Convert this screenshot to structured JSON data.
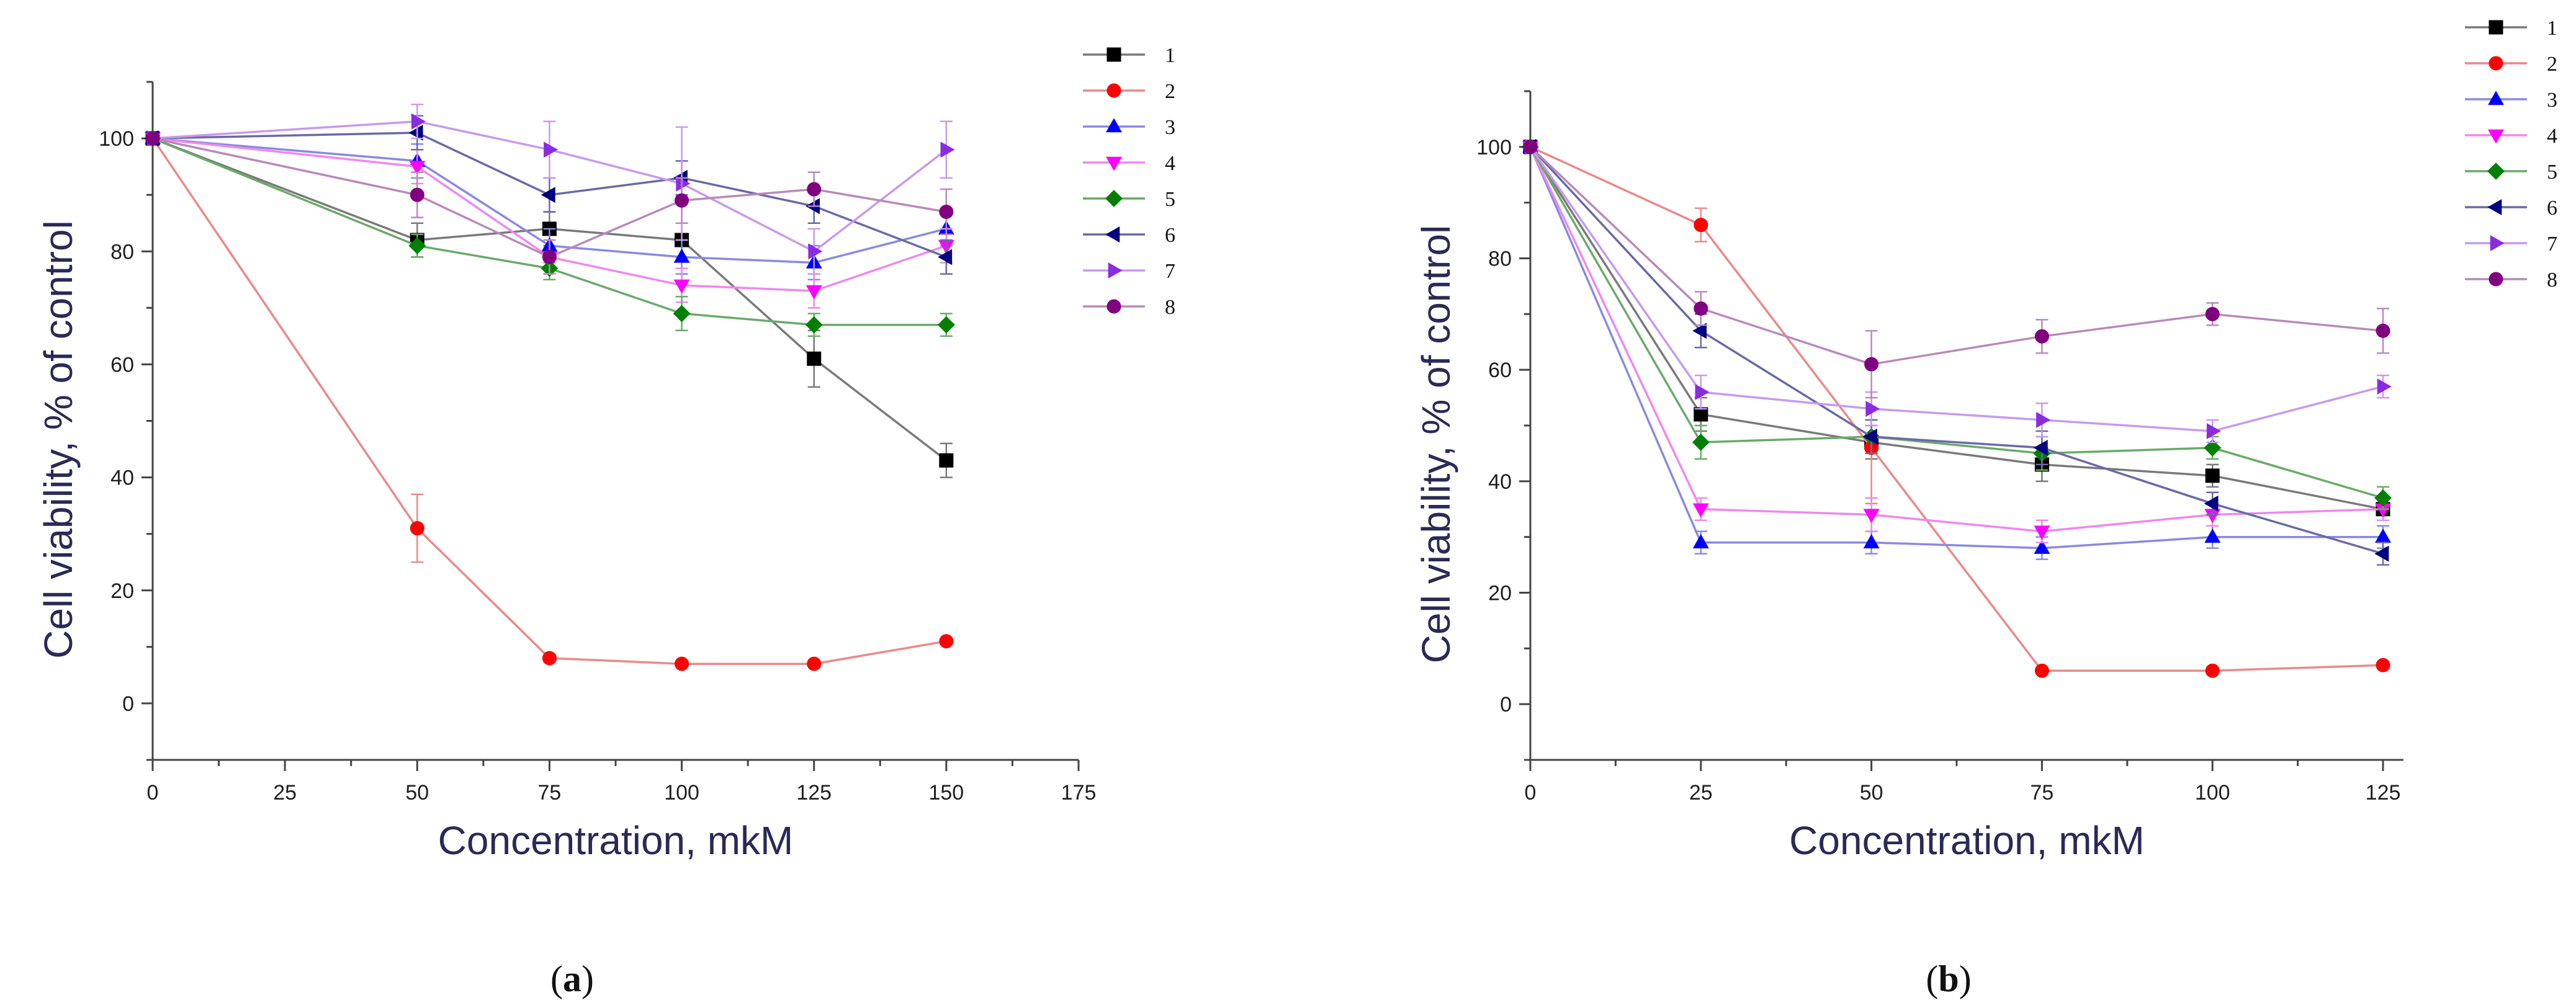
{
  "chart_data": [
    {
      "type": "line",
      "panel": "a",
      "caption": "a",
      "xlabel": "Concentration, mkM",
      "ylabel": "Cell viability, % of control",
      "xlim": [
        0,
        175
      ],
      "ylim": [
        -10,
        110
      ],
      "xticks": [
        0,
        25,
        50,
        75,
        100,
        125,
        150,
        175
      ],
      "yticks": [
        0,
        20,
        40,
        60,
        80,
        100
      ],
      "legend_position": "top-right",
      "x": [
        0,
        50,
        75,
        100,
        125,
        150
      ],
      "series": [
        {
          "name": "1",
          "color": "#000000",
          "marker": "square",
          "line_color": "#7a7a7a",
          "values": [
            100,
            82,
            84,
            82,
            61,
            43
          ],
          "errors": [
            0,
            3,
            3,
            3,
            5,
            3
          ]
        },
        {
          "name": "2",
          "color": "#ff0000",
          "marker": "circle",
          "line_color": "#e98a8a",
          "values": [
            100,
            31,
            8,
            7,
            7,
            11
          ],
          "errors": [
            0,
            6,
            0,
            0,
            0,
            0
          ]
        },
        {
          "name": "3",
          "color": "#0000ff",
          "marker": "triangle-up",
          "line_color": "#8a8ae0",
          "values": [
            100,
            96,
            81,
            79,
            78,
            84
          ],
          "errors": [
            0,
            3,
            3,
            3,
            3,
            3
          ]
        },
        {
          "name": "4",
          "color": "#ff00ff",
          "marker": "triangle-down",
          "line_color": "#ee88ee",
          "values": [
            100,
            95,
            79,
            74,
            73,
            81
          ],
          "errors": [
            0,
            3,
            3,
            3,
            3,
            3
          ]
        },
        {
          "name": "5",
          "color": "#008000",
          "marker": "diamond",
          "line_color": "#6aaa6a",
          "values": [
            100,
            81,
            77,
            69,
            67,
            67
          ],
          "errors": [
            0,
            2,
            2,
            3,
            2,
            2
          ]
        },
        {
          "name": "6",
          "color": "#000080",
          "marker": "triangle-left",
          "line_color": "#6a6aa6",
          "values": [
            100,
            101,
            90,
            93,
            88,
            79
          ],
          "errors": [
            0,
            3,
            3,
            3,
            3,
            3
          ]
        },
        {
          "name": "7",
          "color": "#8a2be2",
          "marker": "triangle-right",
          "line_color": "#c79aee",
          "values": [
            100,
            103,
            98,
            92,
            80,
            98
          ],
          "errors": [
            0,
            3,
            5,
            10,
            4,
            5
          ]
        },
        {
          "name": "8",
          "color": "#800080",
          "marker": "circle",
          "line_color": "#b98ab9",
          "values": [
            100,
            90,
            79,
            89,
            91,
            87
          ],
          "errors": [
            0,
            4,
            3,
            4,
            3,
            4
          ]
        }
      ]
    },
    {
      "type": "line",
      "panel": "b",
      "caption": "b",
      "xlabel": "Concentration, mkM",
      "ylabel": "Cell viability, % of control",
      "xlim": [
        0,
        128
      ],
      "ylim": [
        -10,
        110
      ],
      "xticks": [
        0,
        25,
        50,
        75,
        100,
        125
      ],
      "yticks": [
        0,
        20,
        40,
        60,
        80,
        100
      ],
      "legend_position": "top-right",
      "x": [
        0,
        25,
        50,
        75,
        100,
        125
      ],
      "series": [
        {
          "name": "1",
          "color": "#000000",
          "marker": "square",
          "line_color": "#7a7a7a",
          "values": [
            100,
            52,
            47,
            43,
            41,
            35
          ],
          "errors": [
            0,
            3,
            3,
            3,
            2,
            2
          ]
        },
        {
          "name": "2",
          "color": "#ff0000",
          "marker": "circle",
          "line_color": "#e98a8a",
          "values": [
            100,
            86,
            46,
            6,
            6,
            7
          ],
          "errors": [
            0,
            3,
            10,
            0,
            0,
            0
          ]
        },
        {
          "name": "3",
          "color": "#0000ff",
          "marker": "triangle-up",
          "line_color": "#8a8ae0",
          "values": [
            100,
            29,
            29,
            28,
            30,
            30
          ],
          "errors": [
            0,
            2,
            2,
            2,
            2,
            2
          ]
        },
        {
          "name": "4",
          "color": "#ff00ff",
          "marker": "triangle-down",
          "line_color": "#ee88ee",
          "values": [
            100,
            35,
            34,
            31,
            34,
            35
          ],
          "errors": [
            0,
            2,
            3,
            2,
            2,
            2
          ]
        },
        {
          "name": "5",
          "color": "#008000",
          "marker": "diamond",
          "line_color": "#6aaa6a",
          "values": [
            100,
            47,
            48,
            45,
            46,
            37
          ],
          "errors": [
            0,
            3,
            3,
            3,
            2,
            2
          ]
        },
        {
          "name": "6",
          "color": "#000080",
          "marker": "triangle-left",
          "line_color": "#6a6aa6",
          "values": [
            100,
            67,
            48,
            46,
            36,
            27
          ],
          "errors": [
            0,
            3,
            3,
            3,
            2,
            2
          ]
        },
        {
          "name": "7",
          "color": "#8a2be2",
          "marker": "triangle-right",
          "line_color": "#c79aee",
          "values": [
            100,
            56,
            53,
            51,
            49,
            57
          ],
          "errors": [
            0,
            3,
            3,
            3,
            2,
            2
          ]
        },
        {
          "name": "8",
          "color": "#800080",
          "marker": "circle",
          "line_color": "#b98ab9",
          "values": [
            100,
            71,
            61,
            66,
            70,
            67
          ],
          "errors": [
            0,
            3,
            6,
            3,
            2,
            4
          ]
        }
      ]
    }
  ]
}
